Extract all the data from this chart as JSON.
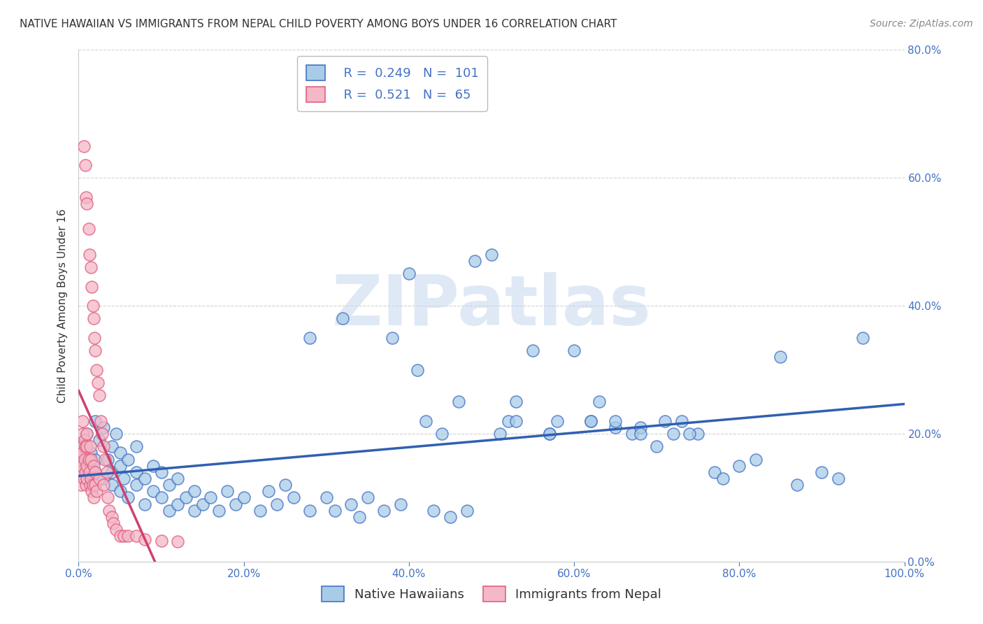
{
  "title": "NATIVE HAWAIIAN VS IMMIGRANTS FROM NEPAL CHILD POVERTY AMONG BOYS UNDER 16 CORRELATION CHART",
  "source": "Source: ZipAtlas.com",
  "ylabel": "Child Poverty Among Boys Under 16",
  "watermark": "ZIPatlas",
  "blue_label": "Native Hawaiians",
  "pink_label": "Immigrants from Nepal",
  "blue_R": 0.249,
  "blue_N": 101,
  "pink_R": 0.521,
  "pink_N": 65,
  "xlim": [
    0.0,
    1.0
  ],
  "ylim": [
    0.0,
    0.8
  ],
  "xticks": [
    0.0,
    0.2,
    0.4,
    0.6,
    0.8,
    1.0
  ],
  "yticks": [
    0.0,
    0.2,
    0.4,
    0.6,
    0.8
  ],
  "blue_color": "#a8cce8",
  "pink_color": "#f4b8c8",
  "blue_edge_color": "#4472c4",
  "pink_edge_color": "#e06080",
  "blue_line_color": "#3060b0",
  "pink_line_color": "#d04070",
  "background_color": "#ffffff",
  "blue_scatter_x": [
    0.005,
    0.008,
    0.01,
    0.015,
    0.02,
    0.02,
    0.02,
    0.025,
    0.03,
    0.03,
    0.035,
    0.04,
    0.04,
    0.04,
    0.045,
    0.05,
    0.05,
    0.05,
    0.055,
    0.06,
    0.06,
    0.07,
    0.07,
    0.07,
    0.08,
    0.08,
    0.09,
    0.09,
    0.1,
    0.1,
    0.11,
    0.11,
    0.12,
    0.12,
    0.13,
    0.14,
    0.14,
    0.15,
    0.16,
    0.17,
    0.18,
    0.19,
    0.2,
    0.22,
    0.23,
    0.24,
    0.25,
    0.26,
    0.28,
    0.28,
    0.3,
    0.31,
    0.32,
    0.33,
    0.34,
    0.35,
    0.37,
    0.38,
    0.39,
    0.4,
    0.41,
    0.42,
    0.43,
    0.44,
    0.45,
    0.46,
    0.47,
    0.48,
    0.5,
    0.51,
    0.52,
    0.53,
    0.55,
    0.57,
    0.58,
    0.6,
    0.62,
    0.63,
    0.65,
    0.67,
    0.68,
    0.7,
    0.72,
    0.73,
    0.75,
    0.77,
    0.78,
    0.8,
    0.82,
    0.85,
    0.87,
    0.9,
    0.92,
    0.95,
    0.53,
    0.57,
    0.62,
    0.65,
    0.68,
    0.71,
    0.74
  ],
  "blue_scatter_y": [
    0.18,
    0.15,
    0.2,
    0.17,
    0.22,
    0.14,
    0.16,
    0.19,
    0.13,
    0.21,
    0.16,
    0.12,
    0.18,
    0.14,
    0.2,
    0.11,
    0.15,
    0.17,
    0.13,
    0.1,
    0.16,
    0.14,
    0.12,
    0.18,
    0.09,
    0.13,
    0.11,
    0.15,
    0.1,
    0.14,
    0.08,
    0.12,
    0.09,
    0.13,
    0.1,
    0.11,
    0.08,
    0.09,
    0.1,
    0.08,
    0.11,
    0.09,
    0.1,
    0.08,
    0.11,
    0.09,
    0.12,
    0.1,
    0.35,
    0.08,
    0.1,
    0.08,
    0.38,
    0.09,
    0.07,
    0.1,
    0.08,
    0.35,
    0.09,
    0.45,
    0.3,
    0.22,
    0.08,
    0.2,
    0.07,
    0.25,
    0.08,
    0.47,
    0.48,
    0.2,
    0.22,
    0.25,
    0.33,
    0.2,
    0.22,
    0.33,
    0.22,
    0.25,
    0.21,
    0.2,
    0.21,
    0.18,
    0.2,
    0.22,
    0.2,
    0.14,
    0.13,
    0.15,
    0.16,
    0.32,
    0.12,
    0.14,
    0.13,
    0.35,
    0.22,
    0.2,
    0.22,
    0.22,
    0.2,
    0.22,
    0.2
  ],
  "pink_scatter_x": [
    0.002,
    0.003,
    0.003,
    0.004,
    0.004,
    0.005,
    0.005,
    0.005,
    0.006,
    0.006,
    0.007,
    0.007,
    0.008,
    0.008,
    0.008,
    0.009,
    0.009,
    0.01,
    0.01,
    0.01,
    0.01,
    0.01,
    0.012,
    0.012,
    0.013,
    0.013,
    0.014,
    0.014,
    0.015,
    0.015,
    0.015,
    0.016,
    0.016,
    0.017,
    0.017,
    0.018,
    0.018,
    0.018,
    0.019,
    0.02,
    0.02,
    0.02,
    0.022,
    0.022,
    0.023,
    0.025,
    0.025,
    0.027,
    0.028,
    0.03,
    0.03,
    0.032,
    0.034,
    0.035,
    0.037,
    0.04,
    0.042,
    0.045,
    0.05,
    0.055,
    0.06,
    0.07,
    0.08,
    0.1,
    0.12
  ],
  "pink_scatter_y": [
    0.14,
    0.16,
    0.12,
    0.18,
    0.15,
    0.2,
    0.17,
    0.22,
    0.13,
    0.65,
    0.19,
    0.16,
    0.62,
    0.14,
    0.18,
    0.57,
    0.12,
    0.56,
    0.15,
    0.18,
    0.2,
    0.13,
    0.52,
    0.16,
    0.48,
    0.14,
    0.18,
    0.12,
    0.46,
    0.16,
    0.13,
    0.43,
    0.11,
    0.4,
    0.12,
    0.38,
    0.15,
    0.1,
    0.35,
    0.33,
    0.14,
    0.12,
    0.3,
    0.11,
    0.28,
    0.26,
    0.13,
    0.22,
    0.2,
    0.18,
    0.12,
    0.16,
    0.14,
    0.1,
    0.08,
    0.07,
    0.06,
    0.05,
    0.04,
    0.04,
    0.04,
    0.04,
    0.035,
    0.033,
    0.031
  ],
  "title_fontsize": 11,
  "axis_label_fontsize": 11,
  "tick_fontsize": 11,
  "legend_fontsize": 13,
  "source_fontsize": 10
}
